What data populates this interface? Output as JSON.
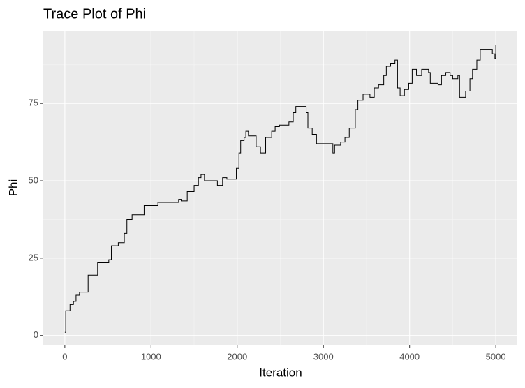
{
  "chart_data": {
    "type": "line",
    "title": "Trace Plot of Phi",
    "x_label": "Iteration",
    "y_label": "Phi",
    "xlim": [
      -250,
      5250
    ],
    "ylim": [
      -3,
      98.5
    ],
    "xticks": [
      0,
      1000,
      2000,
      3000,
      4000,
      5000
    ],
    "yticks": [
      0,
      25,
      50,
      75
    ],
    "grid": true,
    "series": [
      {
        "color": "#000000",
        "x": [
          0,
          10,
          10,
          60,
          60,
          100,
          100,
          130,
          130,
          170,
          170,
          270,
          270,
          380,
          380,
          510,
          510,
          540,
          540,
          620,
          620,
          690,
          690,
          720,
          720,
          780,
          780,
          920,
          920,
          1080,
          1080,
          1320,
          1320,
          1350,
          1350,
          1420,
          1420,
          1500,
          1500,
          1550,
          1550,
          1580,
          1580,
          1620,
          1620,
          1770,
          1770,
          1830,
          1830,
          1880,
          1880,
          1990,
          1990,
          2020,
          2020,
          2040,
          2040,
          2080,
          2080,
          2100,
          2100,
          2130,
          2130,
          2220,
          2220,
          2270,
          2270,
          2330,
          2330,
          2400,
          2400,
          2440,
          2440,
          2490,
          2490,
          2600,
          2600,
          2650,
          2650,
          2680,
          2680,
          2800,
          2800,
          2820,
          2820,
          2870,
          2870,
          2920,
          2920,
          3110,
          3110,
          3130,
          3130,
          3200,
          3200,
          3250,
          3250,
          3300,
          3300,
          3370,
          3370,
          3400,
          3400,
          3460,
          3460,
          3540,
          3540,
          3590,
          3590,
          3640,
          3640,
          3700,
          3700,
          3730,
          3730,
          3780,
          3780,
          3830,
          3830,
          3860,
          3860,
          3890,
          3890,
          3940,
          3940,
          3990,
          3990,
          4030,
          4030,
          4080,
          4080,
          4140,
          4140,
          4220,
          4220,
          4240,
          4240,
          4330,
          4330,
          4370,
          4370,
          4420,
          4420,
          4470,
          4470,
          4500,
          4500,
          4560,
          4560,
          4580,
          4580,
          4650,
          4650,
          4700,
          4700,
          4730,
          4730,
          4780,
          4780,
          4820,
          4820,
          4960,
          4960,
          4990,
          4990,
          5000,
          5000
        ],
        "values": [
          1,
          1,
          8,
          8,
          10,
          10,
          11,
          11,
          13,
          13,
          14,
          14,
          19.5,
          19.5,
          23.5,
          23.5,
          24.5,
          24.5,
          29,
          29,
          30,
          30,
          33,
          33,
          37.5,
          37.5,
          39,
          39,
          42,
          42,
          43,
          43,
          44,
          44,
          43.5,
          43.5,
          46.5,
          46.5,
          48.5,
          48.5,
          51,
          51,
          52,
          52,
          50,
          50,
          48.5,
          48.5,
          51,
          51,
          50.5,
          50.5,
          54,
          54,
          59,
          59,
          63,
          63,
          64,
          64,
          66,
          66,
          64.5,
          64.5,
          61,
          61,
          59,
          59,
          64,
          64,
          66,
          66,
          67.5,
          67.5,
          68,
          68,
          69,
          69,
          72,
          72,
          74,
          74,
          72,
          72,
          67,
          67,
          65,
          65,
          62,
          62,
          59,
          59,
          61.5,
          61.5,
          62.5,
          62.5,
          64,
          64,
          67,
          67,
          73,
          73,
          76,
          76,
          78,
          78,
          77,
          77,
          80,
          80,
          81,
          81,
          84,
          84,
          87,
          87,
          88,
          88,
          89,
          89,
          80,
          80,
          77.5,
          77.5,
          79.5,
          79.5,
          81.5,
          81.5,
          86,
          86,
          84,
          84,
          86,
          86,
          85,
          85,
          81.5,
          81.5,
          81,
          81,
          84,
          84,
          85,
          85,
          84,
          84,
          83,
          83,
          84,
          84,
          77,
          77,
          79,
          79,
          83,
          83,
          86,
          86,
          89,
          89,
          92.5,
          92.5,
          91,
          91,
          89.5,
          89.5,
          94
        ]
      }
    ]
  }
}
